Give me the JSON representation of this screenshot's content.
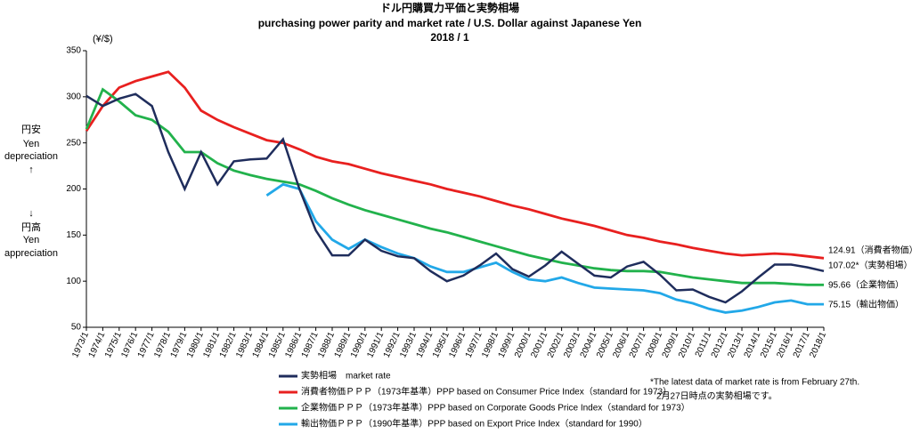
{
  "chart_data": {
    "type": "line",
    "title": "ドル円購買力平価と実勢相場",
    "subtitle": "purchasing power parity and market rate / U.S. Dollar against Japanese Yen",
    "date": "2018 / 1",
    "y_unit": "(¥/$)",
    "y_side_labels": [
      "円安",
      "Yen",
      "depreciation",
      "↑",
      "↓",
      "円高",
      "Yen",
      "appreciation"
    ],
    "categories": [
      "1973/1",
      "1974/1",
      "1975/1",
      "1976/1",
      "1977/1",
      "1978/1",
      "1979/1",
      "1980/1",
      "1981/1",
      "1982/1",
      "1983/1",
      "1984/1",
      "1985/1",
      "1986/1",
      "1987/1",
      "1988/1",
      "1989/1",
      "1990/1",
      "1991/1",
      "1992/1",
      "1993/1",
      "1994/1",
      "1995/1",
      "1996/1",
      "1997/1",
      "1998/1",
      "1999/1",
      "2000/1",
      "2001/1",
      "2002/1",
      "2003/1",
      "2004/1",
      "2005/1",
      "2006/1",
      "2007/1",
      "2008/1",
      "2009/1",
      "2010/1",
      "2011/1",
      "2012/1",
      "2013/1",
      "2014/1",
      "2015/1",
      "2016/1",
      "2017/1",
      "2018/1"
    ],
    "series": [
      {
        "name": "実勢相場　market rate",
        "color": "#1f2d5c",
        "values": [
          301,
          290,
          298,
          303,
          290,
          240,
          200,
          240,
          205,
          230,
          232,
          233,
          254,
          200,
          155,
          128,
          128,
          145,
          133,
          127,
          125,
          111,
          100,
          106,
          117,
          130,
          113,
          105,
          117,
          132,
          119,
          106,
          104,
          116,
          121,
          107,
          90,
          91,
          83,
          77,
          89,
          104,
          118,
          118,
          115,
          111
        ]
      },
      {
        "name": "消費者物価ＰＰＰ（1973年基準）PPP based on Consumer Price Index（standard for 1973）",
        "color": "#e8201f",
        "values": [
          263,
          290,
          310,
          317,
          322,
          327,
          310,
          285,
          275,
          267,
          260,
          253,
          250,
          243,
          235,
          230,
          227,
          222,
          217,
          213,
          209,
          205,
          200,
          196,
          192,
          187,
          182,
          178,
          173,
          168,
          164,
          160,
          155,
          150,
          147,
          143,
          140,
          136,
          133,
          130,
          128,
          129,
          130,
          129,
          127,
          125
        ]
      },
      {
        "name": "企業物価ＰＰＰ（1973年基準）PPP based on Corporate Goods Price Index（standard for 1973）",
        "color": "#22b24c",
        "values": [
          265,
          308,
          295,
          280,
          275,
          262,
          240,
          240,
          228,
          220,
          215,
          211,
          208,
          205,
          198,
          190,
          183,
          177,
          172,
          167,
          162,
          157,
          153,
          148,
          143,
          138,
          133,
          128,
          124,
          120,
          117,
          114,
          112,
          111,
          111,
          110,
          107,
          104,
          102,
          100,
          98,
          98,
          98,
          97,
          96,
          96
        ]
      },
      {
        "name": "輸出物価ＰＰＰ（1990年基準）PPP based on Export Price Index（standard for 1990）",
        "color": "#22a8e8",
        "values": [
          null,
          null,
          null,
          null,
          null,
          null,
          null,
          null,
          null,
          null,
          null,
          193,
          205,
          200,
          165,
          145,
          135,
          145,
          137,
          130,
          125,
          116,
          110,
          110,
          115,
          120,
          110,
          102,
          100,
          104,
          98,
          93,
          92,
          91,
          90,
          87,
          80,
          76,
          70,
          66,
          68,
          72,
          77,
          79,
          75,
          75
        ]
      }
    ],
    "end_labels": [
      "124.91（消費者物価）",
      "107.02*（実勢相場）",
      "95.66（企業物価）",
      "75.15（輸出物価）"
    ],
    "notes": [
      "*The latest data of market rate is from February 27th.",
      "2月27日時点の実勢相場です。"
    ],
    "ylim": [
      50,
      350
    ],
    "yticks": [
      50,
      100,
      150,
      200,
      250,
      300,
      350
    ],
    "grid": false
  }
}
